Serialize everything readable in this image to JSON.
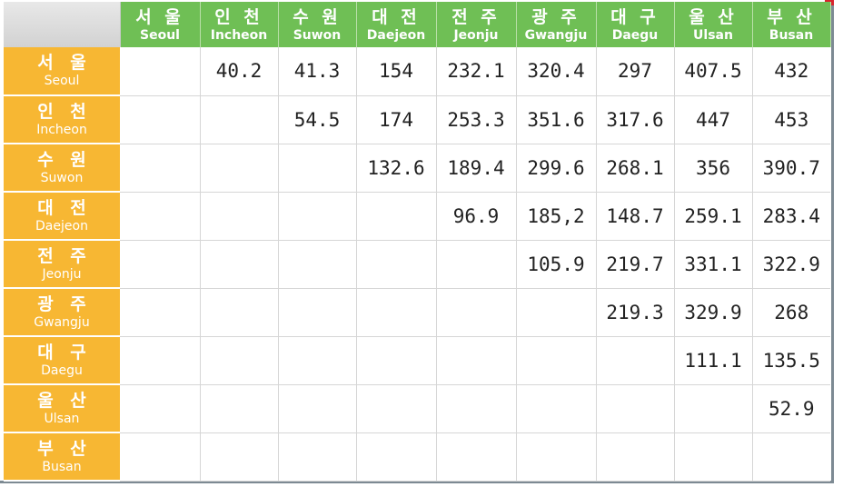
{
  "columns": [
    {
      "ko": "서 울",
      "en": "Seoul"
    },
    {
      "ko": "인 천",
      "en": "Incheon"
    },
    {
      "ko": "수 원",
      "en": "Suwon"
    },
    {
      "ko": "대 전",
      "en": "Daejeon"
    },
    {
      "ko": "전 주",
      "en": "Jeonju"
    },
    {
      "ko": "광 주",
      "en": "Gwangju"
    },
    {
      "ko": "대 구",
      "en": "Daegu"
    },
    {
      "ko": "울 산",
      "en": "Ulsan"
    },
    {
      "ko": "부 산",
      "en": "Busan"
    }
  ],
  "rows": [
    {
      "ko": "서 울",
      "en": "Seoul",
      "cells": [
        "",
        "40.2",
        "41.3",
        "154",
        "232.1",
        "320.4",
        "297",
        "407.5",
        "432"
      ]
    },
    {
      "ko": "인 천",
      "en": "Incheon",
      "cells": [
        "",
        "",
        "54.5",
        "174",
        "253.3",
        "351.6",
        "317.6",
        "447",
        "453"
      ]
    },
    {
      "ko": "수 원",
      "en": "Suwon",
      "cells": [
        "",
        "",
        "",
        "132.6",
        "189.4",
        "299.6",
        "268.1",
        "356",
        "390.7"
      ]
    },
    {
      "ko": "대 전",
      "en": "Daejeon",
      "cells": [
        "",
        "",
        "",
        "",
        "96.9",
        "185,2",
        "148.7",
        "259.1",
        "283.4"
      ]
    },
    {
      "ko": "전 주",
      "en": "Jeonju",
      "cells": [
        "",
        "",
        "",
        "",
        "",
        "105.9",
        "219.7",
        "331.1",
        "322.9"
      ]
    },
    {
      "ko": "광 주",
      "en": "Gwangju",
      "cells": [
        "",
        "",
        "",
        "",
        "",
        "",
        "219.3",
        "329.9",
        "268"
      ]
    },
    {
      "ko": "대 구",
      "en": "Daegu",
      "cells": [
        "",
        "",
        "",
        "",
        "",
        "",
        "",
        "111.1",
        "135.5"
      ]
    },
    {
      "ko": "울 산",
      "en": "Ulsan",
      "cells": [
        "",
        "",
        "",
        "",
        "",
        "",
        "",
        "",
        "52.9"
      ]
    },
    {
      "ko": "부 산",
      "en": "Busan",
      "cells": [
        "",
        "",
        "",
        "",
        "",
        "",
        "",
        "",
        ""
      ]
    }
  ]
}
